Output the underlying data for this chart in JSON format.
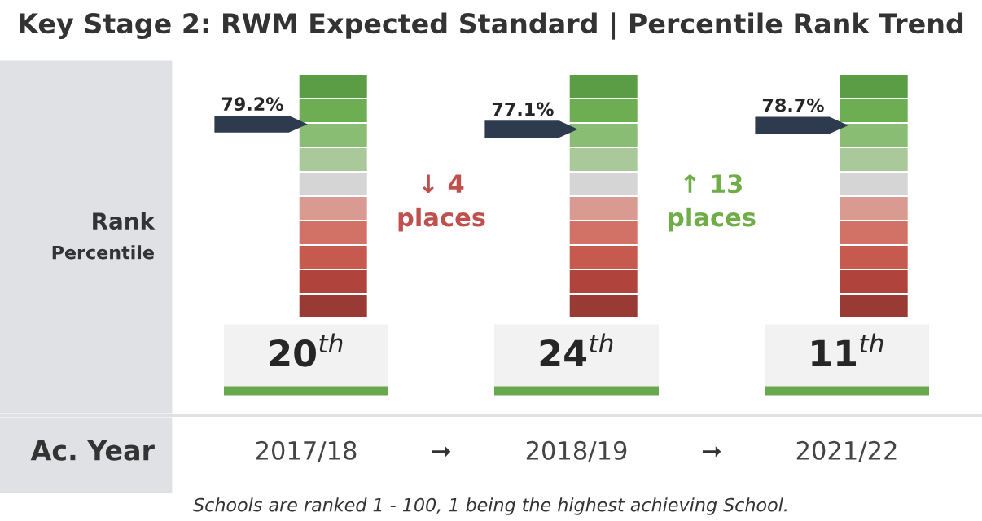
{
  "chart_data": {
    "type": "other",
    "title": "Key Stage 2: RWM Expected Standard | Percentile Rank Trend",
    "ylabel": "Rank",
    "xlabel": "Ac. Year",
    "categories": [
      "2017/18",
      "2018/19",
      "2021/22"
    ],
    "colors": [
      "#993a34",
      "#b0443c",
      "#c75a4e",
      "#d27267",
      "#d99a92",
      "#d5d5d5",
      "#a9c99a",
      "#8abd74",
      "#6eae52",
      "#5b9d45"
    ],
    "series": [
      {
        "color": "#2e3b4e",
        "values": [
          79.2,
          77.1,
          78.7
        ],
        "value_labels": [
          "79.2%",
          "77.1%",
          "78.7%"
        ]
      },
      {
        "color": "#f2f2f2",
        "values": [
          20,
          24,
          11
        ],
        "value_labels": [
          "20$^{th}$",
          "24$^{th}$",
          "11$^{th}$"
        ]
      }
    ],
    "annotations": [
      "Percentile",
      "↓ 4\nplaces",
      "↑ 13\nplaces",
      "➞",
      "➞",
      "Schools are ranked 1 - 100, 1 being the highest achieving School."
    ]
  }
}
